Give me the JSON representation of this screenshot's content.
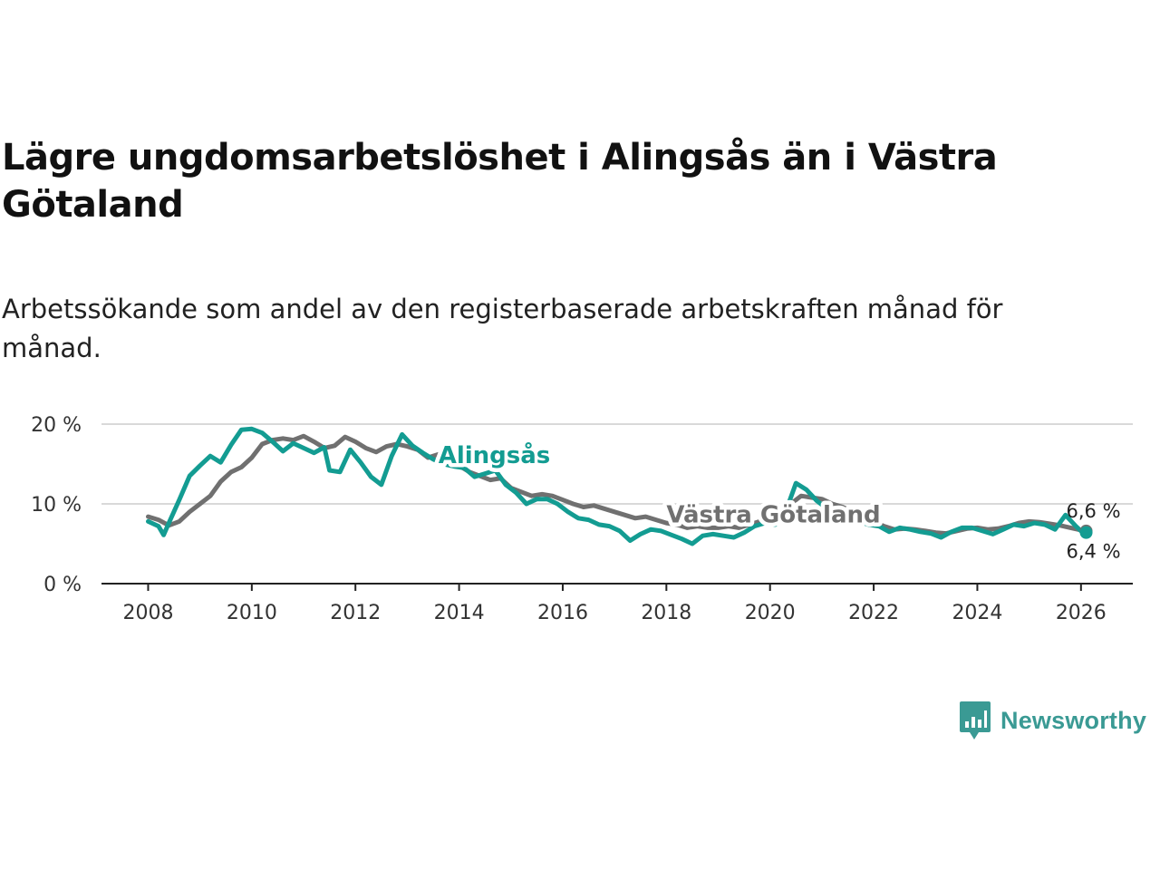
{
  "title": "Lägre ungdomsarbetslöshet i Alingsås än i Västra Götaland",
  "subtitle": "Arbetssökande som andel av den registerbaserade arbetskraften månad för månad.",
  "brand": {
    "name": "Newsworthy",
    "icon": "newsworthy-logo-icon",
    "color": "#3a9a94"
  },
  "chart_data": {
    "type": "line",
    "title": "Lägre ungdomsarbetslöshet i Alingsås än i Västra Götaland",
    "xlabel": "",
    "ylabel": "",
    "xlim": [
      2007.1,
      2027.0
    ],
    "ylim": [
      0,
      20
    ],
    "x_ticks": [
      2008,
      2010,
      2012,
      2014,
      2016,
      2018,
      2020,
      2022,
      2024,
      2026
    ],
    "x_tick_labels": [
      "2008",
      "2010",
      "2012",
      "2014",
      "2016",
      "2018",
      "2020",
      "2022",
      "2024",
      "2026"
    ],
    "y_ticks": [
      0,
      10,
      20
    ],
    "y_tick_labels": [
      "0 %",
      "10 %",
      "20 %"
    ],
    "grid": true,
    "series": [
      {
        "name": "Västra Götaland",
        "color": "#707070",
        "end_label": "6,6 %",
        "points": [
          [
            2008.0,
            8.4
          ],
          [
            2008.2,
            8.0
          ],
          [
            2008.4,
            7.3
          ],
          [
            2008.6,
            7.8
          ],
          [
            2008.8,
            9.0
          ],
          [
            2009.0,
            10.0
          ],
          [
            2009.2,
            11.0
          ],
          [
            2009.4,
            12.8
          ],
          [
            2009.6,
            14.0
          ],
          [
            2009.8,
            14.6
          ],
          [
            2010.0,
            15.8
          ],
          [
            2010.2,
            17.5
          ],
          [
            2010.4,
            18.0
          ],
          [
            2010.6,
            18.2
          ],
          [
            2010.8,
            18.0
          ],
          [
            2011.0,
            18.5
          ],
          [
            2011.2,
            17.8
          ],
          [
            2011.4,
            17.0
          ],
          [
            2011.6,
            17.3
          ],
          [
            2011.8,
            18.4
          ],
          [
            2012.0,
            17.8
          ],
          [
            2012.2,
            17.0
          ],
          [
            2012.4,
            16.5
          ],
          [
            2012.6,
            17.2
          ],
          [
            2012.8,
            17.5
          ],
          [
            2013.0,
            17.2
          ],
          [
            2013.2,
            16.8
          ],
          [
            2013.4,
            15.8
          ],
          [
            2013.6,
            16.2
          ],
          [
            2013.8,
            15.5
          ],
          [
            2014.0,
            14.8
          ],
          [
            2014.2,
            14.0
          ],
          [
            2014.4,
            13.5
          ],
          [
            2014.6,
            13.0
          ],
          [
            2014.8,
            13.2
          ],
          [
            2015.0,
            12.0
          ],
          [
            2015.2,
            11.5
          ],
          [
            2015.4,
            11.0
          ],
          [
            2015.6,
            11.2
          ],
          [
            2015.8,
            11.0
          ],
          [
            2016.0,
            10.5
          ],
          [
            2016.2,
            10.0
          ],
          [
            2016.4,
            9.6
          ],
          [
            2016.6,
            9.8
          ],
          [
            2016.8,
            9.4
          ],
          [
            2017.0,
            9.0
          ],
          [
            2017.2,
            8.6
          ],
          [
            2017.4,
            8.2
          ],
          [
            2017.6,
            8.4
          ],
          [
            2017.8,
            8.0
          ],
          [
            2018.0,
            7.6
          ],
          [
            2018.2,
            7.4
          ],
          [
            2018.4,
            7.0
          ],
          [
            2018.6,
            7.2
          ],
          [
            2018.8,
            7.0
          ],
          [
            2019.0,
            7.0
          ],
          [
            2019.2,
            7.2
          ],
          [
            2019.4,
            7.0
          ],
          [
            2019.6,
            7.4
          ],
          [
            2019.8,
            7.8
          ],
          [
            2020.0,
            8.0
          ],
          [
            2020.2,
            8.6
          ],
          [
            2020.4,
            10.0
          ],
          [
            2020.6,
            11.0
          ],
          [
            2020.8,
            10.8
          ],
          [
            2021.0,
            10.6
          ],
          [
            2021.2,
            10.0
          ],
          [
            2021.4,
            9.6
          ],
          [
            2021.6,
            9.0
          ],
          [
            2021.8,
            8.4
          ],
          [
            2022.0,
            7.8
          ],
          [
            2022.2,
            7.2
          ],
          [
            2022.4,
            6.8
          ],
          [
            2022.6,
            6.9
          ],
          [
            2022.8,
            6.8
          ],
          [
            2023.0,
            6.6
          ],
          [
            2023.2,
            6.4
          ],
          [
            2023.4,
            6.3
          ],
          [
            2023.6,
            6.6
          ],
          [
            2023.8,
            6.9
          ],
          [
            2024.0,
            7.0
          ],
          [
            2024.2,
            6.8
          ],
          [
            2024.4,
            6.9
          ],
          [
            2024.6,
            7.2
          ],
          [
            2024.8,
            7.6
          ],
          [
            2025.0,
            7.8
          ],
          [
            2025.2,
            7.7
          ],
          [
            2025.4,
            7.5
          ],
          [
            2025.6,
            7.3
          ],
          [
            2025.8,
            7.0
          ],
          [
            2026.0,
            6.7
          ],
          [
            2026.1,
            6.6
          ]
        ]
      },
      {
        "name": "Alingsås",
        "color": "#139c92",
        "end_label": "6,4 %",
        "points": [
          [
            2008.0,
            7.8
          ],
          [
            2008.2,
            7.2
          ],
          [
            2008.3,
            6.1
          ],
          [
            2008.4,
            7.6
          ],
          [
            2008.6,
            10.5
          ],
          [
            2008.8,
            13.5
          ],
          [
            2009.0,
            14.8
          ],
          [
            2009.2,
            16.0
          ],
          [
            2009.4,
            15.2
          ],
          [
            2009.6,
            17.4
          ],
          [
            2009.8,
            19.3
          ],
          [
            2010.0,
            19.4
          ],
          [
            2010.2,
            18.9
          ],
          [
            2010.4,
            17.8
          ],
          [
            2010.6,
            16.6
          ],
          [
            2010.8,
            17.6
          ],
          [
            2011.0,
            17.0
          ],
          [
            2011.2,
            16.4
          ],
          [
            2011.4,
            17.1
          ],
          [
            2011.5,
            14.2
          ],
          [
            2011.7,
            14.0
          ],
          [
            2011.9,
            16.8
          ],
          [
            2012.1,
            15.2
          ],
          [
            2012.3,
            13.4
          ],
          [
            2012.5,
            12.4
          ],
          [
            2012.7,
            16.0
          ],
          [
            2012.9,
            18.7
          ],
          [
            2013.1,
            17.3
          ],
          [
            2013.3,
            16.4
          ],
          [
            2013.5,
            15.6
          ],
          [
            2013.7,
            15.0
          ],
          [
            2013.9,
            14.7
          ],
          [
            2014.1,
            14.5
          ],
          [
            2014.3,
            13.4
          ],
          [
            2014.5,
            13.8
          ],
          [
            2014.7,
            14.2
          ],
          [
            2014.9,
            12.4
          ],
          [
            2015.1,
            11.4
          ],
          [
            2015.3,
            10.0
          ],
          [
            2015.5,
            10.6
          ],
          [
            2015.7,
            10.6
          ],
          [
            2015.9,
            10.0
          ],
          [
            2016.1,
            9.0
          ],
          [
            2016.3,
            8.2
          ],
          [
            2016.5,
            8.0
          ],
          [
            2016.7,
            7.4
          ],
          [
            2016.9,
            7.2
          ],
          [
            2017.1,
            6.6
          ],
          [
            2017.3,
            5.4
          ],
          [
            2017.5,
            6.2
          ],
          [
            2017.7,
            6.8
          ],
          [
            2017.9,
            6.6
          ],
          [
            2018.1,
            6.1
          ],
          [
            2018.3,
            5.6
          ],
          [
            2018.5,
            5.0
          ],
          [
            2018.7,
            6.0
          ],
          [
            2018.9,
            6.2
          ],
          [
            2019.1,
            6.0
          ],
          [
            2019.3,
            5.8
          ],
          [
            2019.5,
            6.4
          ],
          [
            2019.7,
            7.2
          ],
          [
            2019.9,
            7.6
          ],
          [
            2020.1,
            7.4
          ],
          [
            2020.3,
            9.0
          ],
          [
            2020.5,
            12.6
          ],
          [
            2020.7,
            11.8
          ],
          [
            2020.9,
            10.4
          ],
          [
            2021.1,
            9.4
          ],
          [
            2021.3,
            8.8
          ],
          [
            2021.5,
            8.2
          ],
          [
            2021.7,
            7.8
          ],
          [
            2021.9,
            7.4
          ],
          [
            2022.1,
            7.2
          ],
          [
            2022.3,
            6.5
          ],
          [
            2022.5,
            7.0
          ],
          [
            2022.7,
            6.8
          ],
          [
            2022.9,
            6.5
          ],
          [
            2023.1,
            6.3
          ],
          [
            2023.3,
            5.8
          ],
          [
            2023.5,
            6.5
          ],
          [
            2023.7,
            7.0
          ],
          [
            2023.9,
            7.0
          ],
          [
            2024.1,
            6.6
          ],
          [
            2024.3,
            6.2
          ],
          [
            2024.5,
            6.8
          ],
          [
            2024.7,
            7.4
          ],
          [
            2024.9,
            7.2
          ],
          [
            2025.1,
            7.6
          ],
          [
            2025.3,
            7.4
          ],
          [
            2025.5,
            6.8
          ],
          [
            2025.7,
            8.6
          ],
          [
            2025.9,
            7.2
          ],
          [
            2026.0,
            6.6
          ],
          [
            2026.1,
            6.4
          ]
        ]
      }
    ],
    "annotations": [
      {
        "text": "Alingsås",
        "series": "Alingsås",
        "at_x": 2013.6,
        "at_y": 16.0
      },
      {
        "text": "Västra Götaland",
        "series": "Västra Götaland",
        "at_x": 2018.0,
        "at_y": 8.6
      }
    ]
  }
}
